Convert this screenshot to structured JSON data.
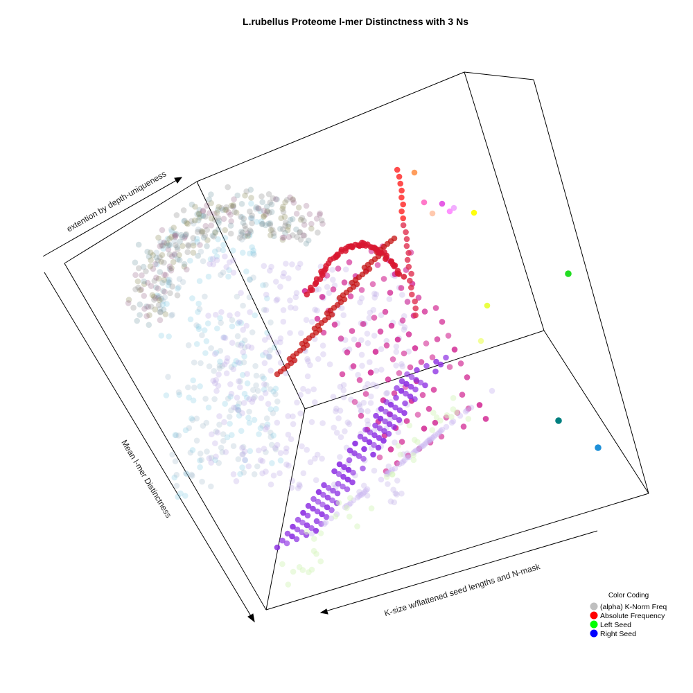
{
  "chart_data": {
    "type": "scatter",
    "title": "L.rubellus Proteome l-mer Distinctness with 3 Ns",
    "axes": {
      "x_label": "K-size w/flattened seed lengths and N-mask",
      "y_label": "extention by depth-uniqueness",
      "z_label": "Mean l-mer Distinctness"
    },
    "legend": {
      "title": "Color Coding",
      "placement": "bottom-right",
      "entries": [
        {
          "label": "(alpha) K-Norm Freq",
          "color": "#bfbfbf"
        },
        {
          "label": "Absolute Frequency",
          "color": "#ff0000"
        },
        {
          "label": "Left Seed",
          "color": "#00ff00"
        },
        {
          "label": "Right Seed",
          "color": "#0000ff"
        }
      ]
    },
    "projection": "3d",
    "colors": {
      "absolute_frequency": "#c41010",
      "bottom_series": "#8a2be2",
      "magenta_series": "#d0208f",
      "cyan_series": "#7ec8e3",
      "grey_series": "#8a8a8a",
      "light_purple": "#b9a5e6",
      "light_green": "#d8f5c0",
      "yellow_outlier": "#ffff00",
      "green_outlier": "#22dd22",
      "teal_outlier": "#007f7f",
      "blue_outlier": "#1e90d8"
    }
  }
}
